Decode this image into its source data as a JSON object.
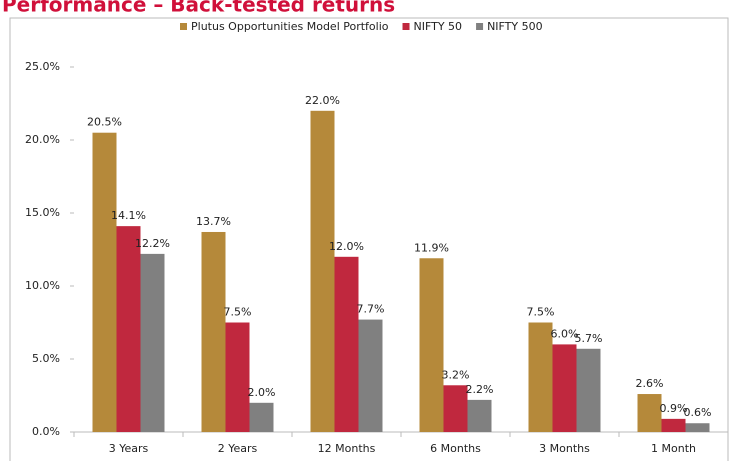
{
  "chart_data": {
    "type": "bar",
    "title": "Performance – Back-tested returns",
    "categories": [
      "3 Years",
      "2 Years",
      "12 Months",
      "6 Months",
      "3 Months",
      "1 Month"
    ],
    "series": [
      {
        "name": "Plutus Opportunities Model Portfolio",
        "color": "#b5893a",
        "values": [
          20.5,
          13.7,
          22.0,
          11.9,
          7.5,
          2.6
        ],
        "value_labels": [
          "20.5%",
          "13.7%",
          "22.0%",
          "11.9%",
          "7.5%",
          "2.6%"
        ]
      },
      {
        "name": "NIFTY 50",
        "color": "#c0283e",
        "values": [
          14.1,
          7.5,
          12.0,
          3.2,
          6.0,
          0.9
        ],
        "value_labels": [
          "14.1%",
          "7.5%",
          "12.0%",
          "3.2%",
          "6.0%",
          "0.9%"
        ]
      },
      {
        "name": "NIFTY 500",
        "color": "#808080",
        "values": [
          12.2,
          2.0,
          7.7,
          2.2,
          5.7,
          0.6
        ],
        "value_labels": [
          "12.2%",
          "2.0%",
          "7.7%",
          "2.2%",
          "5.7%",
          "0.6%"
        ]
      }
    ],
    "ylim": [
      0,
      25
    ],
    "yticks": [
      {
        "value": 0,
        "label": "0.0%"
      },
      {
        "value": 5,
        "label": "5.0%"
      },
      {
        "value": 10,
        "label": "10.0%"
      },
      {
        "value": 15,
        "label": "15.0%"
      },
      {
        "value": 20,
        "label": "20.0%"
      },
      {
        "value": 25,
        "label": "25.0%"
      }
    ],
    "grid": false,
    "legend": "top"
  }
}
